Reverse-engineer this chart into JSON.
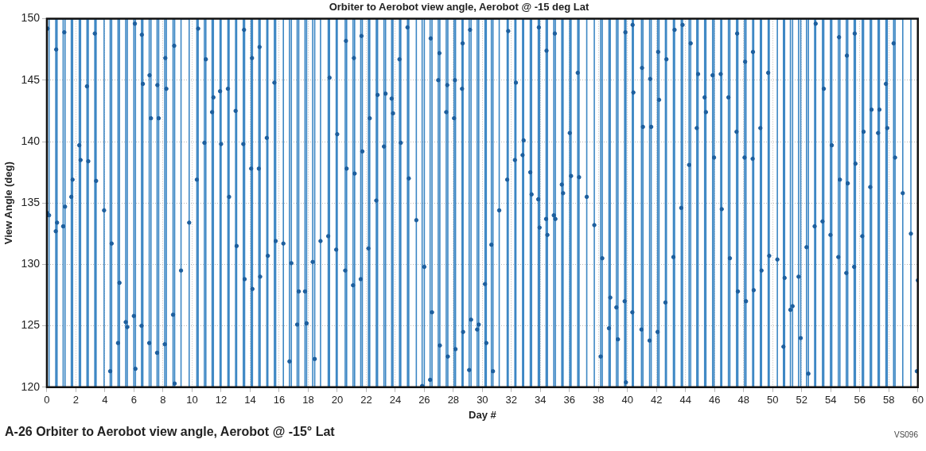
{
  "chart_data": {
    "type": "line",
    "title": "Orbiter to Aerobot view angle, Aerobot @ -15 deg Lat",
    "xlabel": "Day #",
    "ylabel": "View Angle (deg)",
    "annotations": [
      "A-26 Orbiter to Aerobot view angle, Aerobot @ -15° Lat",
      "VS096"
    ],
    "xlim": [
      0,
      60
    ],
    "xticks": [
      0,
      2,
      4,
      6,
      8,
      10,
      12,
      14,
      16,
      18,
      20,
      22,
      24,
      26,
      28,
      30,
      32,
      34,
      36,
      38,
      40,
      42,
      44,
      46,
      48,
      50,
      52,
      54,
      56,
      58,
      60
    ],
    "ylim": [
      120,
      150
    ],
    "yticks": [
      120,
      125,
      130,
      135,
      140,
      145,
      150
    ],
    "grid": true,
    "marker": "circle",
    "series": [
      {
        "marker": "none",
        "color": "#3d87c4",
        "x": [
          0.15,
          0.15,
          0.61,
          0.61,
          0.7,
          0.7,
          1.12,
          1.12,
          1.25,
          1.25,
          1.68,
          1.68,
          1.77,
          1.77,
          2.23,
          2.23,
          2.32,
          2.32,
          2.76,
          2.76,
          2.85,
          2.85,
          3.3,
          3.3,
          3.39,
          3.39,
          3.94,
          3.94,
          4.36,
          4.36,
          4.46,
          4.46,
          4.9,
          4.9,
          5.0,
          5.0,
          5.43,
          5.43,
          5.54,
          5.54,
          5.99,
          5.99,
          6.1,
          6.1,
          6.52,
          6.52,
          6.61,
          6.61,
          7.05,
          7.05,
          7.17,
          7.17,
          7.59,
          7.59,
          7.7,
          7.7,
          8.12,
          8.12,
          8.23,
          8.23,
          8.69,
          8.69,
          8.8,
          8.8,
          9.24,
          9.24,
          9.8,
          9.8,
          10.33,
          10.33,
          10.42,
          10.42,
          10.85,
          10.85,
          10.95,
          10.95,
          11.38,
          11.38,
          11.47,
          11.47,
          11.93,
          11.93,
          12.0,
          12.0,
          12.47,
          12.47,
          12.55,
          12.55,
          13.0,
          13.0,
          13.07,
          13.07,
          13.53,
          13.53,
          13.62,
          13.62,
          14.07,
          14.07,
          14.16,
          14.16,
          14.6,
          14.6,
          14.69,
          14.69,
          15.15,
          15.15,
          15.22,
          15.22,
          15.67,
          15.67,
          15.76,
          15.76,
          16.29,
          16.29,
          16.71,
          16.71,
          16.84,
          16.84,
          17.24,
          17.24,
          17.35,
          17.35,
          17.78,
          17.78,
          17.89,
          17.89,
          18.31,
          18.31,
          18.45,
          18.45,
          18.85,
          18.85,
          19.38,
          19.38,
          19.47,
          19.47,
          19.93,
          19.93,
          20.0,
          20.0,
          20.55,
          20.55,
          20.65,
          20.65,
          21.09,
          21.09,
          21.2,
          21.2,
          21.62,
          21.62,
          21.73,
          21.73,
          22.15,
          22.15,
          22.24,
          22.24,
          22.69,
          22.69,
          22.78,
          22.78,
          23.22,
          23.22,
          23.33,
          23.33,
          23.75,
          23.75,
          23.84,
          23.84,
          24.29,
          24.29,
          24.38,
          24.38,
          24.84,
          24.84,
          24.93,
          24.93,
          25.45,
          25.45,
          25.85,
          25.85,
          26.0,
          26.0,
          26.4,
          26.4,
          26.53,
          26.53,
          26.96,
          26.96,
          27.07,
          27.07,
          27.51,
          27.51,
          27.62,
          27.62,
          28.05,
          28.05,
          28.15,
          28.15,
          28.6,
          28.6,
          28.67,
          28.67,
          29.09,
          29.09,
          29.22,
          29.22,
          29.64,
          29.64,
          29.75,
          29.75,
          30.18,
          30.18,
          30.27,
          30.27,
          30.62,
          30.62,
          30.73,
          30.73,
          31.16,
          31.16,
          31.71,
          31.71,
          31.78,
          31.78,
          32.24,
          32.24,
          32.31,
          32.31,
          32.77,
          32.77,
          32.84,
          32.84,
          33.3,
          33.3,
          33.39,
          33.39,
          33.85,
          33.85,
          33.94,
          33.94,
          34.39,
          34.39,
          34.48,
          34.48,
          34.92,
          34.92,
          35.03,
          35.03,
          35.47,
          35.47,
          35.56,
          35.56,
          36.02,
          36.02,
          36.11,
          36.11,
          36.57,
          36.57,
          36.66,
          36.66,
          37.19,
          37.19,
          37.71,
          37.71,
          38.15,
          38.15,
          38.26,
          38.26,
          38.72,
          38.72,
          38.81,
          38.81,
          39.23,
          39.23,
          39.34,
          39.34,
          39.8,
          39.8,
          39.89,
          39.89,
          40.33,
          40.33,
          40.4,
          40.4,
          40.96,
          40.96,
          41.06,
          41.06,
          41.52,
          41.52,
          41.63,
          41.63,
          42.07,
          42.07,
          42.17,
          42.17,
          42.61,
          42.61,
          42.68,
          42.68,
          43.16,
          43.16,
          43.24,
          43.24,
          43.7,
          43.7,
          43.79,
          43.79,
          44.24,
          44.24,
          44.35,
          44.35,
          44.77,
          44.77,
          44.86,
          44.86,
          45.31,
          45.31,
          45.4,
          45.4,
          45.86,
          45.86,
          45.96,
          45.96,
          46.42,
          46.42,
          46.49,
          46.49,
          46.95,
          46.95,
          47.05,
          47.05,
          47.51,
          47.51,
          47.6,
          47.6,
          48.06,
          48.06,
          48.16,
          48.16,
          48.62,
          48.62,
          48.69,
          48.69,
          49.15,
          49.15,
          49.23,
          49.23,
          49.69,
          49.69,
          49.76,
          49.76,
          50.32,
          50.32,
          50.74,
          50.74,
          50.82,
          50.82,
          51.22,
          51.22,
          51.37,
          51.37,
          51.78,
          51.78,
          51.93,
          51.93,
          52.33,
          52.33,
          52.46,
          52.46,
          52.89,
          52.89,
          52.96,
          52.96,
          53.43,
          53.43,
          53.52,
          53.52,
          53.98,
          53.98,
          54.07,
          54.07,
          54.52,
          54.52,
          54.63,
          54.63,
          55.07,
          55.07,
          55.17,
          55.17,
          55.61,
          55.61,
          55.7,
          55.7,
          56.17,
          56.17,
          56.26,
          56.26,
          56.72,
          56.72,
          56.81,
          56.81,
          57.26,
          57.26,
          57.35,
          57.35,
          57.8,
          57.8,
          57.89,
          57.89,
          58.33,
          58.33,
          58.43,
          58.43,
          58.96,
          58.96,
          59.52,
          59.52
        ],
        "values": [
          120,
          150,
          150,
          120,
          120,
          150,
          150,
          120,
          120,
          150,
          150,
          120,
          120,
          150,
          150,
          120,
          120,
          150,
          150,
          120,
          120,
          150,
          150,
          120,
          120,
          150,
          150,
          120,
          120,
          150,
          150,
          120,
          120,
          150,
          150,
          120,
          120,
          150,
          150,
          120,
          120,
          150,
          150,
          120,
          120,
          150,
          150,
          120,
          120,
          150,
          150,
          120,
          120,
          150,
          150,
          120,
          120,
          150,
          150,
          120,
          120,
          150,
          150,
          120,
          120,
          150,
          150,
          120,
          120,
          150,
          150,
          120,
          120,
          150,
          150,
          120,
          120,
          150,
          150,
          120,
          120,
          150,
          150,
          120,
          120,
          150,
          150,
          120,
          120,
          150,
          150,
          120,
          120,
          150,
          150,
          120,
          120,
          150,
          150,
          120,
          120,
          150,
          150,
          120,
          120,
          150,
          150,
          120,
          120,
          150,
          150,
          120,
          120,
          150,
          150,
          120,
          120,
          150,
          150,
          120,
          120,
          150,
          150,
          120,
          120,
          150,
          150,
          120,
          120,
          150,
          150,
          120,
          120,
          150,
          150,
          120,
          120,
          150,
          150,
          120,
          120,
          150,
          150,
          120,
          120,
          150,
          150,
          120,
          120,
          150,
          150,
          120,
          120,
          150,
          150,
          120,
          120,
          150,
          150,
          120,
          120,
          150,
          150,
          120,
          120,
          150,
          150,
          120,
          120,
          150,
          150,
          120,
          120,
          150,
          150,
          120,
          120,
          150,
          150,
          120,
          120,
          150,
          150,
          120,
          120,
          150,
          150,
          120,
          120,
          150,
          150,
          120,
          120,
          150,
          150,
          120,
          120,
          150,
          150,
          120,
          120,
          150,
          150,
          120,
          120,
          150,
          150,
          120,
          120,
          150,
          150,
          120,
          120,
          150,
          150,
          120,
          120,
          150,
          150,
          120,
          120,
          150,
          150,
          120,
          120,
          150,
          150,
          120,
          120,
          150,
          150,
          120,
          120,
          150,
          150,
          120,
          120,
          150,
          150,
          120,
          120,
          150,
          150,
          120,
          120,
          150,
          150,
          120,
          120,
          150,
          150,
          120,
          120,
          150,
          150,
          120,
          120,
          150,
          150,
          120,
          120,
          150,
          150,
          120,
          120,
          150,
          150,
          120,
          120,
          150,
          150,
          120,
          120,
          150,
          150,
          120,
          120,
          150,
          150,
          120,
          120,
          150,
          150,
          120,
          120,
          150,
          150,
          120,
          120,
          150,
          150,
          120,
          120,
          150,
          150,
          120,
          120,
          150,
          150,
          120,
          120,
          150,
          150,
          120,
          120,
          150,
          150,
          120,
          120,
          150,
          150,
          120,
          120,
          150,
          150,
          120,
          120,
          150,
          150,
          120,
          120,
          150,
          150,
          120,
          120,
          150,
          150,
          120,
          120,
          150,
          150,
          120,
          120,
          150,
          150,
          120,
          120,
          150,
          150,
          120,
          120,
          150,
          150,
          120,
          120,
          150,
          150,
          120,
          120,
          150,
          150,
          120,
          120,
          150,
          150,
          120,
          120,
          150,
          150,
          120,
          120,
          150,
          150,
          120,
          120,
          150,
          150,
          120,
          120,
          150,
          150,
          120,
          120,
          150,
          150,
          120,
          120,
          150,
          150,
          120,
          120,
          150,
          150,
          120,
          120,
          150,
          150,
          120,
          120,
          150,
          150,
          120,
          120,
          150,
          150,
          120,
          120,
          150,
          150,
          120,
          120,
          150,
          150,
          120,
          120,
          150,
          150,
          120,
          120,
          150,
          150,
          120,
          120,
          150,
          150,
          120,
          120,
          150
        ]
      },
      {
        "type": "scatter",
        "color": "#1d5f9e",
        "x": [
          0,
          0.05,
          0.15,
          0.61,
          0.64,
          0.7,
          1.12,
          1.2,
          1.25,
          1.68,
          1.77,
          2.23,
          2.32,
          2.76,
          2.85,
          3.3,
          3.39,
          3.94,
          4.36,
          4.46,
          4.9,
          5.0,
          5.43,
          5.54,
          5.99,
          6.06,
          6.1,
          6.52,
          6.54,
          6.61,
          7.05,
          7.07,
          7.17,
          7.59,
          7.61,
          7.7,
          8.12,
          8.16,
          8.23,
          8.69,
          8.77,
          8.8,
          9.24,
          9.8,
          10.33,
          10.42,
          10.85,
          10.95,
          11.38,
          11.47,
          11.93,
          12.0,
          12.47,
          12.55,
          13.0,
          13.07,
          13.53,
          13.58,
          13.62,
          14.07,
          14.13,
          14.16,
          14.6,
          14.65,
          14.69,
          15.15,
          15.22,
          15.67,
          15.76,
          16.29,
          16.71,
          16.84,
          17.24,
          17.35,
          17.78,
          17.89,
          18.31,
          18.45,
          18.85,
          19.38,
          19.47,
          19.93,
          20.0,
          20.55,
          20.6,
          20.65,
          21.09,
          21.15,
          21.2,
          21.62,
          21.67,
          21.73,
          22.15,
          22.24,
          22.69,
          22.78,
          23.22,
          23.33,
          23.75,
          23.84,
          24.29,
          24.38,
          24.84,
          24.93,
          25.45,
          25.85,
          26.0,
          26.4,
          26.44,
          26.53,
          26.96,
          27.04,
          27.07,
          27.51,
          27.58,
          27.62,
          28.05,
          28.11,
          28.15,
          28.6,
          28.64,
          28.67,
          29.09,
          29.15,
          29.22,
          29.64,
          29.75,
          30.18,
          30.27,
          30.62,
          30.73,
          31.16,
          31.71,
          31.78,
          32.24,
          32.31,
          32.77,
          32.84,
          33.3,
          33.39,
          33.85,
          33.89,
          33.94,
          34.39,
          34.42,
          34.48,
          34.92,
          34.99,
          35.03,
          35.47,
          35.56,
          36.02,
          36.11,
          36.57,
          36.66,
          37.19,
          37.71,
          38.15,
          38.26,
          38.72,
          38.81,
          39.23,
          39.34,
          39.8,
          39.85,
          39.89,
          40.33,
          40.35,
          40.4,
          40.96,
          41.0,
          41.06,
          41.52,
          41.56,
          41.63,
          42.07,
          42.11,
          42.17,
          42.61,
          42.68,
          43.16,
          43.24,
          43.7,
          43.79,
          44.24,
          44.35,
          44.77,
          44.86,
          45.31,
          45.4,
          45.86,
          45.96,
          46.42,
          46.49,
          46.95,
          47.05,
          47.51,
          47.55,
          47.6,
          48.06,
          48.1,
          48.16,
          48.62,
          48.64,
          48.69,
          49.15,
          49.23,
          49.69,
          49.76,
          50.32,
          50.74,
          50.82,
          51.22,
          51.37,
          51.78,
          51.93,
          52.33,
          52.46,
          52.89,
          52.96,
          53.43,
          53.52,
          53.98,
          54.07,
          54.52,
          54.57,
          54.63,
          55.07,
          55.11,
          55.17,
          55.61,
          55.65,
          55.7,
          56.17,
          56.26,
          56.72,
          56.81,
          57.26,
          57.35,
          57.8,
          57.89,
          58.33,
          58.43,
          58.96,
          59.52,
          59.93,
          60
        ],
        "values": [
          134.2,
          149.2,
          134.0,
          132.7,
          147.5,
          133.4,
          133.1,
          148.9,
          134.7,
          135.5,
          136.9,
          139.7,
          138.5,
          144.5,
          138.4,
          148.8,
          136.8,
          134.4,
          121.3,
          131.7,
          123.6,
          128.5,
          125.3,
          124.9,
          125.8,
          149.6,
          121.5,
          125.0,
          148.7,
          144.7,
          123.6,
          145.4,
          141.9,
          122.8,
          144.6,
          141.9,
          123.5,
          146.8,
          144.3,
          125.9,
          147.8,
          120.3,
          129.5,
          133.4,
          136.9,
          149.2,
          139.9,
          146.7,
          142.4,
          143.6,
          144.1,
          139.8,
          144.3,
          135.5,
          142.5,
          131.5,
          139.8,
          149.1,
          128.8,
          137.8,
          146.8,
          128.0,
          137.8,
          147.7,
          129.0,
          140.3,
          130.7,
          144.8,
          131.9,
          131.7,
          122.1,
          130.1,
          125.1,
          127.8,
          127.8,
          125.2,
          130.2,
          122.3,
          131.9,
          132.3,
          145.2,
          131.2,
          140.6,
          129.5,
          148.2,
          137.8,
          128.3,
          146.8,
          137.4,
          128.8,
          148.6,
          139.2,
          131.3,
          141.9,
          135.2,
          143.8,
          139.6,
          143.9,
          143.5,
          142.3,
          146.7,
          139.9,
          149.3,
          137.0,
          133.6,
          120.1,
          129.8,
          120.6,
          148.4,
          126.1,
          145.0,
          147.2,
          123.4,
          142.4,
          144.6,
          122.5,
          141.9,
          145.0,
          123.1,
          144.3,
          148.0,
          124.5,
          121.4,
          149.1,
          125.5,
          124.7,
          125.1,
          128.4,
          123.6,
          131.6,
          121.3,
          134.4,
          136.9,
          149.0,
          138.5,
          144.8,
          138.9,
          140.1,
          137.5,
          135.7,
          135.3,
          149.3,
          133.0,
          133.7,
          147.4,
          132.4,
          134.0,
          148.8,
          133.7,
          136.5,
          135.8,
          140.7,
          137.2,
          145.6,
          137.1,
          135.5,
          133.2,
          122.5,
          130.5,
          124.8,
          127.3,
          126.5,
          123.9,
          127.0,
          148.9,
          120.4,
          126.1,
          149.5,
          144.0,
          124.7,
          146.0,
          141.2,
          123.8,
          145.1,
          141.2,
          124.5,
          147.3,
          143.4,
          126.9,
          146.7,
          130.6,
          149.1,
          134.6,
          149.5,
          138.1,
          148.0,
          141.1,
          145.5,
          143.6,
          142.4,
          145.4,
          138.7,
          145.5,
          134.5,
          143.6,
          130.5,
          140.8,
          148.8,
          127.8,
          138.7,
          146.5,
          127.0,
          138.6,
          147.3,
          127.9,
          141.1,
          129.5,
          145.6,
          130.7,
          130.4,
          123.3,
          128.9,
          126.3,
          126.6,
          129.0,
          124.0,
          131.4,
          121.1,
          133.1,
          149.6,
          133.5,
          144.3,
          132.4,
          139.7,
          130.6,
          148.5,
          136.9,
          129.3,
          147.0,
          136.6,
          129.8,
          148.8,
          138.2,
          132.3,
          140.8,
          136.3,
          142.6,
          140.7,
          142.6,
          144.7,
          141.1,
          148.0,
          138.7,
          135.8,
          132.5,
          121.3,
          128.7
        ]
      }
    ]
  }
}
